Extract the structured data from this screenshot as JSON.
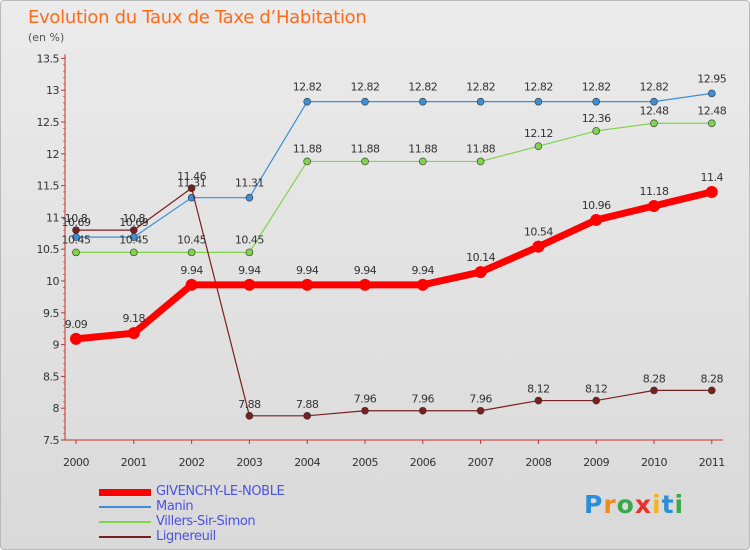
{
  "title": "Evolution du Taux de Taxe d’Habitation",
  "subtitle": "(en %)",
  "logo": {
    "letters": [
      "P",
      "r",
      "o",
      "x",
      "i",
      "t",
      "i"
    ],
    "colors": [
      "#2a8fd6",
      "#f08c1e",
      "#3aa84a",
      "#e8312a",
      "#f2b51f",
      "#2a8fd6",
      "#3aa84a"
    ]
  },
  "chart_data": {
    "type": "line",
    "x": [
      "2000",
      "2001",
      "2002",
      "2003",
      "2004",
      "2005",
      "2006",
      "2007",
      "2008",
      "2009",
      "2010",
      "2011"
    ],
    "ylim": [
      7.5,
      13.5
    ],
    "yticks": [
      "7.5",
      "8",
      "8.5",
      "9",
      "9.5",
      "10",
      "10.5",
      "11",
      "11.5",
      "12",
      "12.5",
      "13",
      "13.5"
    ],
    "grid": false,
    "legend_position": "bottom-left",
    "series": [
      {
        "name": "GIVENCHY-LE-NOBLE",
        "color": "#ff0000",
        "bold": true,
        "values": [
          9.09,
          9.18,
          9.94,
          9.94,
          9.94,
          9.94,
          9.94,
          10.14,
          10.54,
          10.96,
          11.18,
          11.4
        ],
        "labels": [
          "9.09",
          "9.18",
          "9.94",
          "9.94",
          "9.94",
          "9.94",
          "9.94",
          "10.14",
          "10.54",
          "10.96",
          "11.18",
          "11.4"
        ]
      },
      {
        "name": "Manin",
        "color": "#3d8ed6",
        "bold": false,
        "values": [
          10.69,
          10.69,
          11.31,
          11.31,
          12.82,
          12.82,
          12.82,
          12.82,
          12.82,
          12.82,
          12.82,
          12.95
        ],
        "labels": [
          "10.69",
          "10.69",
          "11.31",
          "11.31",
          "12.82",
          "12.82",
          "12.82",
          "12.82",
          "12.82",
          "12.82",
          "12.82",
          "12.95"
        ]
      },
      {
        "name": "Villers-Sir-Simon",
        "color": "#7fd44c",
        "bold": false,
        "values": [
          10.45,
          10.45,
          10.45,
          10.45,
          11.88,
          11.88,
          11.88,
          11.88,
          12.12,
          12.36,
          12.48,
          12.48
        ],
        "labels": [
          "10.45",
          "10.45",
          "10.45",
          "10.45",
          "11.88",
          "11.88",
          "11.88",
          "11.88",
          "12.12",
          "12.36",
          "12.48",
          "12.48"
        ]
      },
      {
        "name": "Lignereuil",
        "color": "#7a1f1f",
        "bold": false,
        "values": [
          10.8,
          10.8,
          11.46,
          7.88,
          7.88,
          7.96,
          7.96,
          7.96,
          8.12,
          8.12,
          8.28,
          8.28
        ],
        "labels": [
          "10.8",
          "10.8",
          "11.46",
          "7.88",
          "7.88",
          "7.96",
          "7.96",
          "7.96",
          "8.12",
          "8.12",
          "8.28",
          "8.28"
        ]
      }
    ]
  }
}
